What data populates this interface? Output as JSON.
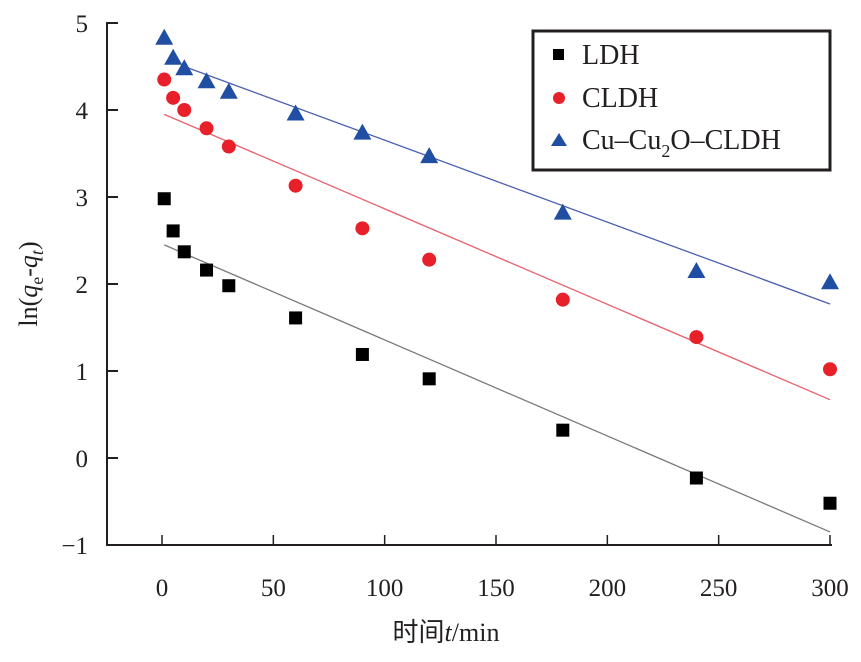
{
  "chart_data": {
    "type": "scatter",
    "title": "",
    "xlabel": "时间t/min",
    "xlabel_parts": {
      "prefix": "时间",
      "var": "t",
      "suffix": "/min"
    },
    "ylabel": "ln(qe-qt)",
    "ylabel_parts": {
      "pre": "ln(",
      "q1": "q",
      "sub1": "e",
      "dash": "-",
      "q2": "q",
      "sub2": "t",
      "post": ")"
    },
    "xlim": [
      -20,
      305
    ],
    "ylim": [
      -1,
      5
    ],
    "xticks": [
      0,
      50,
      100,
      150,
      200,
      250,
      300
    ],
    "yticks": [
      -1,
      0,
      1,
      2,
      3,
      4,
      5
    ],
    "ytick_labels": [
      "−1",
      "0",
      "1",
      "2",
      "3",
      "4",
      "5"
    ],
    "grid": false,
    "legend_position": "top-right",
    "x": [
      1,
      5,
      10,
      20,
      30,
      60,
      90,
      120,
      180,
      240,
      300
    ],
    "series": [
      {
        "name": "LDH",
        "marker": "square",
        "color": "#000000",
        "line_color": "#7a7a7a",
        "values": [
          2.98,
          2.61,
          2.37,
          2.16,
          1.98,
          1.61,
          1.19,
          0.91,
          0.32,
          -0.23,
          -0.52
        ],
        "fit": {
          "x": [
            1,
            300
          ],
          "y": [
            2.45,
            -0.85
          ]
        }
      },
      {
        "name": "CLDH",
        "marker": "circle",
        "color": "#e8202a",
        "line_color": "#e8606a",
        "values": [
          4.35,
          4.14,
          4.0,
          3.79,
          3.58,
          3.13,
          2.64,
          2.28,
          1.82,
          1.39,
          1.02
        ],
        "fit": {
          "x": [
            1,
            300
          ],
          "y": [
            3.95,
            0.67
          ]
        }
      },
      {
        "name": "Cu–Cu2O–CLDH",
        "legend_parts": {
          "a": "Cu–Cu",
          "sub": "2",
          "b": "O–CLDH"
        },
        "marker": "triangle",
        "color": "#1f4ea3",
        "line_color": "#4a5fb0",
        "values": [
          4.83,
          4.6,
          4.48,
          4.33,
          4.21,
          3.96,
          3.74,
          3.47,
          2.82,
          2.15,
          2.02
        ],
        "fit": {
          "x": [
            10,
            300
          ],
          "y": [
            4.5,
            1.77
          ]
        }
      }
    ]
  }
}
